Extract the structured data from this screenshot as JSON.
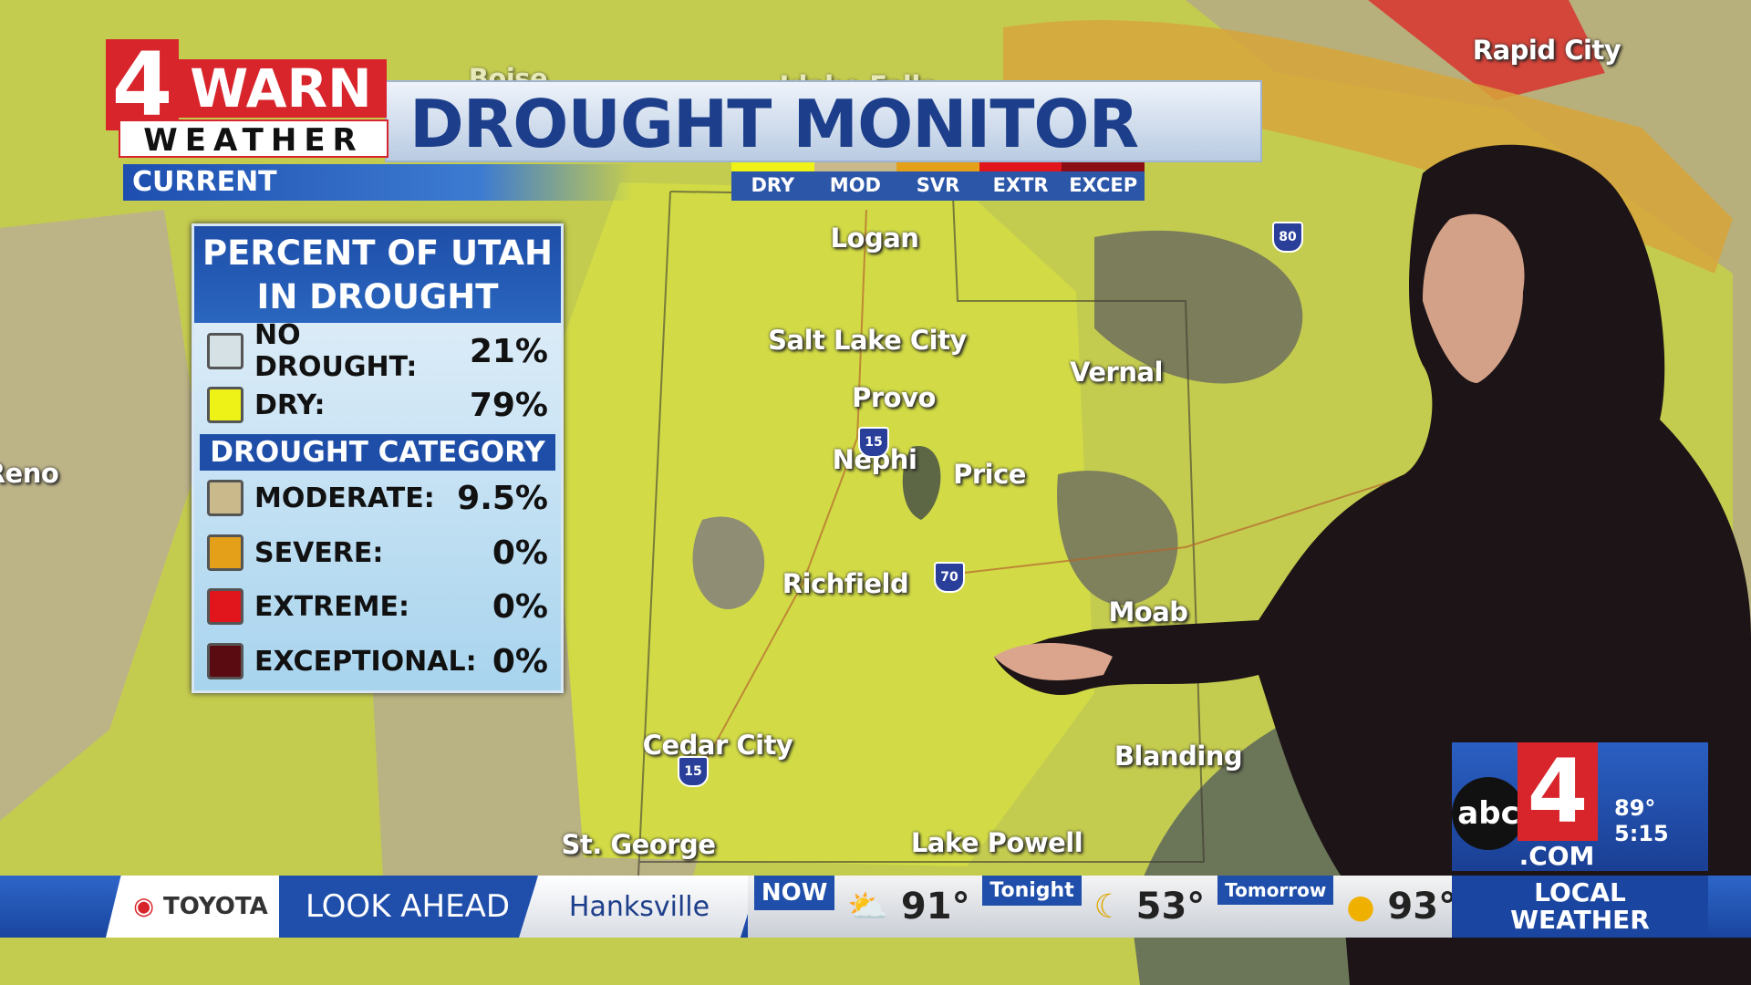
{
  "logo": {
    "number": "4",
    "brand": "WARN",
    "sub": "WEATHER"
  },
  "header": {
    "title": "DROUGHT MONITOR",
    "subtitle": "CURRENT",
    "scale": [
      "DRY",
      "MOD",
      "SVR",
      "EXTR",
      "EXCEP"
    ]
  },
  "panel": {
    "title": [
      "PERCENT OF UTAH",
      "IN DROUGHT"
    ],
    "rows": [
      [
        "NO DROUGHT:",
        "21%"
      ],
      [
        "DRY:",
        "79%"
      ]
    ],
    "section": "DROUGHT CATEGORY",
    "categories": [
      [
        "MODERATE:",
        "9.5%"
      ],
      [
        "SEVERE:",
        "0%"
      ],
      [
        "EXTREME:",
        "0%"
      ],
      [
        "EXCEPTIONAL:",
        "0%"
      ]
    ]
  },
  "map_labels": [
    "Boise",
    "Idaho Falls",
    "Rapid City",
    "Logan",
    "Salt Lake City",
    "Vernal",
    "Provo",
    "Nephi",
    "Price",
    "Reno",
    "Richfield",
    "Moab",
    "Cedar City",
    "Blanding",
    "St. George",
    "Lake Powell"
  ],
  "highways": [
    "80",
    "15",
    "70",
    "15"
  ],
  "ticker": {
    "sponsor": "TOYOTA",
    "segment": "LOOK AHEAD",
    "location": "Hanksville",
    "forecast": [
      [
        "NOW",
        "91°"
      ],
      [
        "Tonight",
        "53°"
      ],
      [
        "Tomorrow",
        "93°"
      ]
    ],
    "tag": [
      "LOCAL",
      "WEATHER"
    ]
  },
  "station": {
    "network": "abc",
    "number": "4",
    "domain": ".COM",
    "temp": "89°",
    "time": "5:15"
  }
}
